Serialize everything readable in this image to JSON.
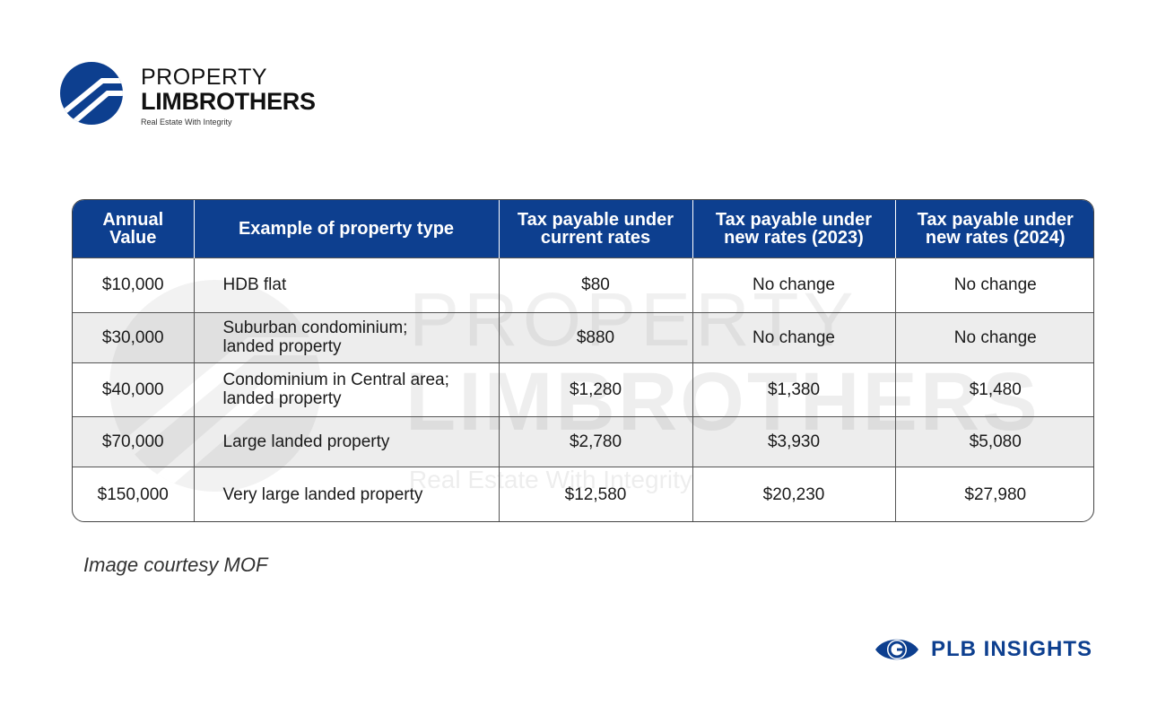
{
  "brand": {
    "line1": "PROPERTY",
    "line2": "LIMBROTHERS",
    "tagline": "Real Estate With Integrity",
    "icon": "plb-logo-icon",
    "color": "#0d3f8f"
  },
  "watermark": {
    "line1": "PROPERTY",
    "line2": "LIMBROTHERS",
    "line3": "Real Estate With Integrity"
  },
  "table": {
    "header_color": "#0d3f8f",
    "headers": [
      "Annual Value",
      "Example of property type",
      "Tax payable under current rates",
      "Tax payable under new rates (2023)",
      "Tax payable under new rates (2024)"
    ],
    "rows": [
      [
        "$10,000",
        "HDB flat",
        "$80",
        "No change",
        "No change"
      ],
      [
        "$30,000",
        "Suburban condominium; landed property",
        "$880",
        "No change",
        "No change"
      ],
      [
        "$40,000",
        "Condominium in Central area; landed property",
        "$1,280",
        "$1,380",
        "$1,480"
      ],
      [
        "$70,000",
        "Large landed property",
        "$2,780",
        "$3,930",
        "$5,080"
      ],
      [
        "$150,000",
        "Very large landed property",
        "$12,580",
        "$20,230",
        "$27,980"
      ]
    ]
  },
  "caption": "Image courtesy MOF",
  "insights": {
    "label": "PLB INSIGHTS",
    "icon": "eye-icon"
  }
}
